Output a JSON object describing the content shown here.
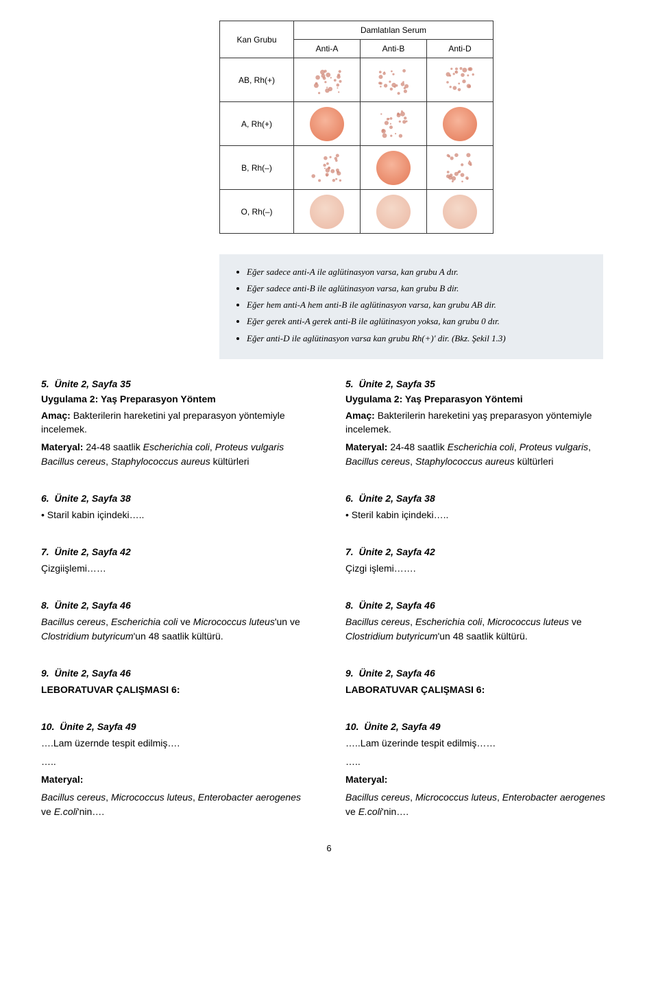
{
  "blood_table": {
    "row_header": "Kan Grubu",
    "span_header": "Damlatılan Serum",
    "cols": [
      "Anti-A",
      "Anti-B",
      "Anti-D"
    ],
    "rows": [
      {
        "label": "AB, Rh(+)",
        "cells": [
          "scatter",
          "scatter",
          "scatter"
        ]
      },
      {
        "label": "A, Rh(+)",
        "cells": [
          "solid",
          "scatter",
          "solid"
        ]
      },
      {
        "label": "B, Rh(–)",
        "cells": [
          "scatter",
          "solid",
          "scatter"
        ]
      },
      {
        "label": "O, Rh(–)",
        "cells": [
          "faint",
          "faint",
          "faint"
        ]
      }
    ]
  },
  "card_bullets": [
    "Eğer sadece anti-A ile aglütinasyon varsa, kan grubu A dır.",
    "Eğer sadece anti-B ile aglütinasyon varsa, kan grubu B dir.",
    "Eğer hem anti-A hem anti-B ile aglütinasyon varsa, kan grubu AB dir.",
    "Eğer gerek anti-A gerek anti-B ile aglütinasyon yoksa, kan grubu 0 dır.",
    "Eğer anti-D ile aglütinasyon varsa kan grubu Rh(+)' dir. (Bkz. Şekil 1.3)"
  ],
  "sec5L": {
    "num": "5.",
    "loc": "Ünite 2, Sayfa 35",
    "title": "Uygulama 2: Yaş Preparasyon Yöntem",
    "amac": "Bakterilerin hareketini yal preparasyon yöntemiyle incelemek.",
    "mat": "24-48 saatlik Escherichia coli, Proteus vulgaris Bacillus cereus, Staphylococcus aureus kültürleri"
  },
  "sec5R": {
    "num": "5.",
    "loc": "Ünite 2, Sayfa 35",
    "title": "Uygulama 2: Yaş Preparasyon Yöntemi",
    "amac": "Bakterilerin hareketini yaş preparasyon yöntemiyle incelemek.",
    "mat": "24-48 saatlik Escherichia coli, Proteus vulgaris, Bacillus cereus, Staphylococcus aureus kültürleri"
  },
  "sec6L": {
    "num": "6.",
    "loc": "Ünite 2, Sayfa 38",
    "text": "Staril kabin içindeki….."
  },
  "sec6R": {
    "num": "6.",
    "loc": "Ünite 2, Sayfa 38",
    "text": "Steril kabin içindeki….."
  },
  "sec7L": {
    "num": "7.",
    "loc": "Ünite 2, Sayfa 42",
    "text": "Çizgiişlemi……"
  },
  "sec7R": {
    "num": "7.",
    "loc": "Ünite 2, Sayfa 42",
    "text": "Çizgi işlemi……."
  },
  "sec8L": {
    "num": "8.",
    "loc": "Ünite 2, Sayfa 46",
    "text": "Bacillus cereus, Escherichia coli ve Micrococcus luteus'un ve Clostridium butyricum'un 48 saatlik kültürü."
  },
  "sec8R": {
    "num": "8.",
    "loc": "Ünite 2, Sayfa 46",
    "text": "Bacillus cereus, Escherichia coli, Micrococcus luteus ve Clostridium butyricum'un 48 saatlik kültürü."
  },
  "sec9L": {
    "num": "9.",
    "loc": "Ünite 2, Sayfa 46",
    "text": "LEBORATUVAR ÇALIŞMASI 6:"
  },
  "sec9R": {
    "num": "9.",
    "loc": "Ünite 2, Sayfa 46",
    "text": "LABORATUVAR ÇALIŞMASI 6:"
  },
  "sec10L": {
    "num": "10.",
    "loc": "Ünite 2, Sayfa 49",
    "l1": "….Lam üzernde tespit edilmiş….",
    "l2": "…..",
    "mat_label": "Materyal:",
    "mat": "Bacillus cereus, Micrococcus luteus, Enterobacter aerogenes ve E.coli'nin…."
  },
  "sec10R": {
    "num": "10.",
    "loc": "Ünite 2, Sayfa 49",
    "l1": "…..Lam üzerinde tespit edilmiş……",
    "l2": "…..",
    "mat_label": "Materyal:",
    "mat": "Bacillus cereus, Micrococcus luteus, Enterobacter aerogenes ve E.coli'nin…."
  },
  "labels": {
    "amac": "Amaç:",
    "materyal": "Materyal:"
  },
  "page_number": "6",
  "colors": {
    "card_bg": "#e9edf1",
    "text": "#000000",
    "solid_inner": "#f7b59b",
    "solid_outer": "#e98a6a",
    "faint_inner": "#f5d9c9",
    "faint_outer": "#eec2af",
    "scatter_dot": "#d08a7a"
  }
}
